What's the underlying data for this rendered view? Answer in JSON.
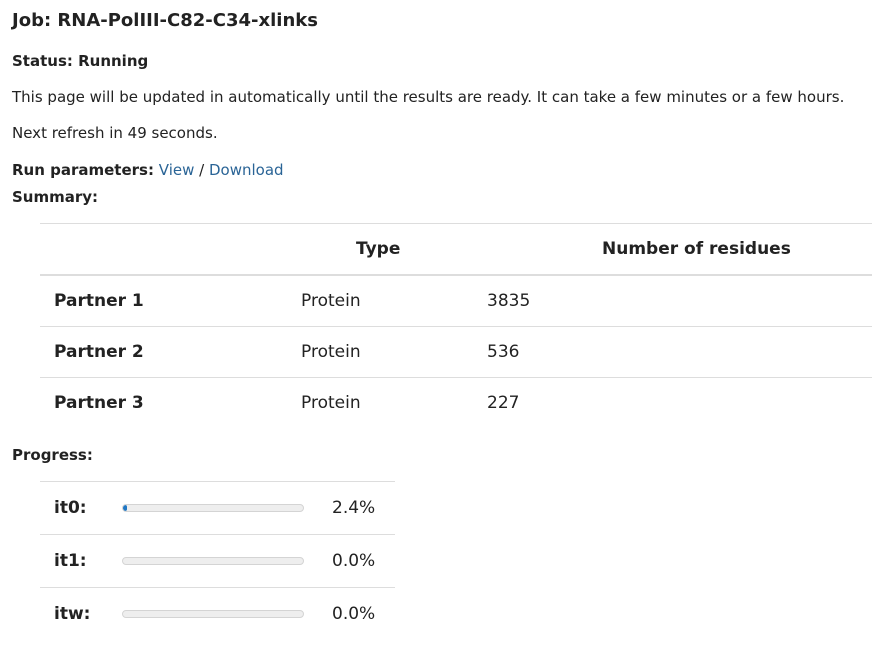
{
  "job": {
    "title": "Job: RNA-PolIII-C82-C34-xlinks",
    "status": "Status: Running",
    "info": "This page will be updated in automatically until the results are ready. It can take a few minutes or a few hours.",
    "refresh": "Next refresh in 49 seconds."
  },
  "run_parameters": {
    "label": "Run parameters:",
    "view_link": "View",
    "separator": " / ",
    "download_link": "Download"
  },
  "summary": {
    "label": "Summary:",
    "columns": [
      "",
      "Type",
      "Number of residues"
    ],
    "rows": [
      {
        "name": "Partner 1",
        "type": "Protein",
        "residues": "3835"
      },
      {
        "name": "Partner 2",
        "type": "Protein",
        "residues": "536"
      },
      {
        "name": "Partner 3",
        "type": "Protein",
        "residues": "227"
      }
    ]
  },
  "progress": {
    "label": "Progress:",
    "accent_color": "#1f77c4",
    "items": [
      {
        "label": "it0:",
        "value": 2.4,
        "text": "2.4%"
      },
      {
        "label": "it1:",
        "value": 0.0,
        "text": "0.0%"
      },
      {
        "label": "itw:",
        "value": 0.0,
        "text": "0.0%"
      }
    ]
  }
}
